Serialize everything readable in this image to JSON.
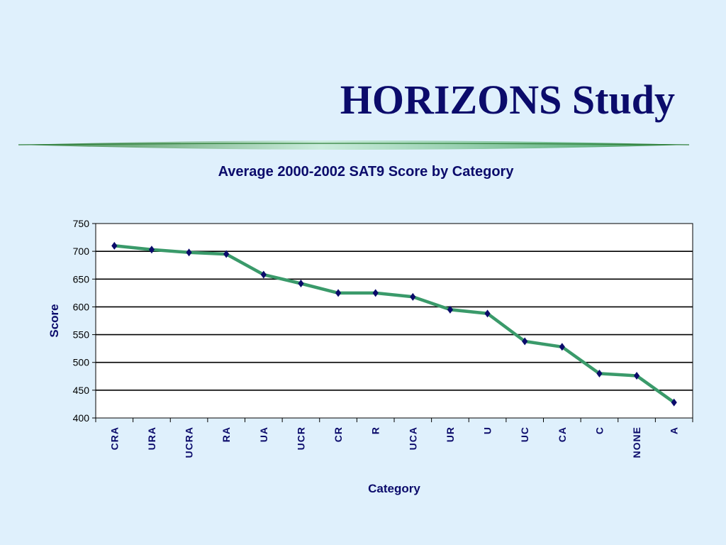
{
  "slide": {
    "title": "HORIZONS Study"
  },
  "colors": {
    "background": "#dff0fc",
    "title": "#0b0b6b",
    "line": "#3a9a6a",
    "marker": "#0b0b6b",
    "swoosh_dark": "#2f7f3a",
    "swoosh_light": "#c8ecd9"
  },
  "chart_data": {
    "type": "line",
    "title": "Average 2000-2002 SAT9 Score by Category",
    "xlabel": "Category",
    "ylabel": "Score",
    "ylim": [
      400,
      750
    ],
    "yticks": [
      400,
      450,
      500,
      550,
      600,
      650,
      700,
      750
    ],
    "grid": true,
    "legend": "none",
    "categories": [
      "CRA",
      "URA",
      "UCRA",
      "RA",
      "UA",
      "UCR",
      "CR",
      "R",
      "UCA",
      "UR",
      "U",
      "UC",
      "CA",
      "C",
      "NONE",
      "A"
    ],
    "series": [
      {
        "values": [
          710,
          703,
          698,
          695,
          658,
          642,
          625,
          625,
          618,
          595,
          588,
          538,
          528,
          480,
          476,
          428
        ],
        "marker": "diamond"
      }
    ]
  }
}
